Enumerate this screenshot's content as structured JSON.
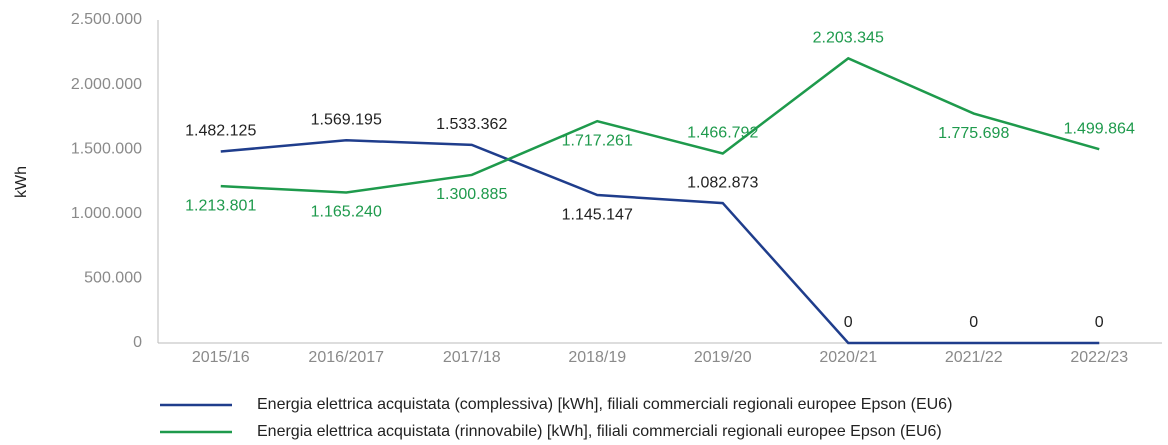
{
  "chart_data": {
    "type": "line",
    "y_label": "kWh",
    "categories": [
      "2015/16",
      "2016/2017",
      "2017/18",
      "2018/19",
      "2019/20",
      "2020/21",
      "2021/22",
      "2022/23"
    ],
    "series": [
      {
        "name": "Energia elettrica acquistata (complessiva) [kWh], filiali commerciali regionali europee Epson (EU6)",
        "color": "#1f3d8c",
        "values": [
          1482125,
          1569195,
          1533362,
          1145147,
          1082873,
          0,
          0,
          0
        ],
        "value_labels": [
          "1.482.125",
          "1.569.195",
          "1.533.362",
          "1.145.147",
          "1.082.873",
          "0",
          "0",
          "0"
        ]
      },
      {
        "name": "Energia elettrica acquistata (rinnovabile) [kWh], filiali commerciali regionali europee Epson (EU6)",
        "color": "#1e9a4c",
        "values": [
          1213801,
          1165240,
          1300885,
          1717261,
          1466792,
          2203345,
          1775698,
          1499864
        ],
        "value_labels": [
          "1.213.801",
          "1.165.240",
          "1.300.885",
          "1.717.261",
          "1.466.792",
          "2.203.345",
          "1.775.698",
          "1.499.864"
        ]
      }
    ],
    "ylim": [
      0,
      2500000
    ],
    "yticks": [
      0,
      {
        "value": 500000,
        "label": "500.000"
      },
      {
        "value": 1000000,
        "label": "1.000.000"
      },
      {
        "value": 1500000,
        "label": "1.500.000"
      },
      {
        "value": 2000000,
        "label": "2.000.000"
      },
      {
        "value": 2500000,
        "label": "2.500.000"
      }
    ],
    "grid": false
  }
}
